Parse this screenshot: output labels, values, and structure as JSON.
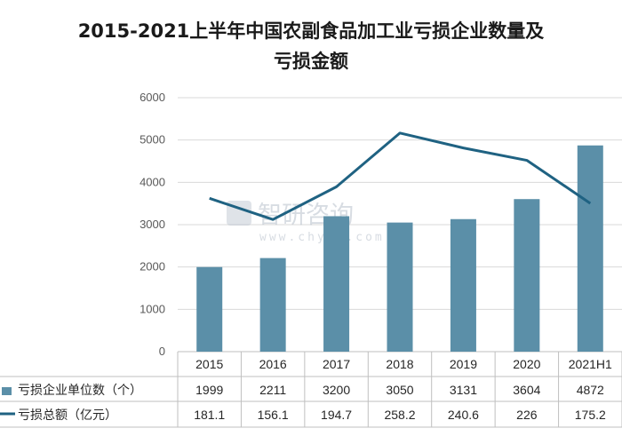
{
  "title_line1": "2015-2021上半年中国农副食品加工业亏损企业数量及",
  "title_line2": "亏损金额",
  "watermark": {
    "text": "智研咨询",
    "url": "www.chyxx.com"
  },
  "colors": {
    "bar": "#5b8fa8",
    "line": "#1f6282",
    "grid": "#d9d9d9",
    "axis": "#bfbfbf"
  },
  "chart_data": {
    "type": "bar",
    "categories": [
      "2015",
      "2016",
      "2017",
      "2018",
      "2019",
      "2020",
      "2021H1"
    ],
    "ylim": [
      0,
      6000
    ],
    "yticks": [
      0,
      1000,
      2000,
      3000,
      4000,
      5000,
      6000
    ],
    "grid": true,
    "legend": "bottom-table",
    "series": [
      {
        "name": "亏损企业单位数（个）",
        "type": "bar",
        "values": [
          1999,
          2211,
          3200,
          3050,
          3131,
          3604,
          4872
        ],
        "labels": [
          "1999",
          "2211",
          "3200",
          "3050",
          "3131",
          "3604",
          "4872"
        ]
      },
      {
        "name": "亏损总额（亿元）",
        "type": "line",
        "values": [
          181.1,
          156.1,
          194.7,
          258.2,
          240.6,
          226,
          175.2
        ],
        "labels": [
          "181.1",
          "156.1",
          "194.7",
          "258.2",
          "240.6",
          "226",
          "175.2"
        ]
      }
    ]
  }
}
